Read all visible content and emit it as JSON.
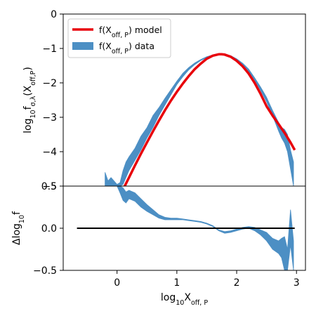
{
  "chart_data": [
    {
      "type": "line",
      "panel": "main",
      "ylabel": {
        "pre": "log",
        "sub1": "10",
        "mid": "f",
        "sub2": "σ,λ",
        "post": "(X",
        "sub3": "off,P",
        "end": ")"
      },
      "ylim": [
        -5,
        0
      ],
      "xlim": [
        -0.9,
        3.15
      ],
      "yticks": [
        "0",
        "−1",
        "−2",
        "−3",
        "−4",
        "−5"
      ],
      "ytick_values": [
        0,
        -1,
        -2,
        -3,
        -4,
        -5
      ],
      "legend_position": "upper-left",
      "series": [
        {
          "name": "f(X_off,P) model",
          "name_parts": {
            "pre": "f(X",
            "sub": "off, P",
            "post": ") model"
          },
          "kind": "line",
          "color": "#e8000b",
          "x": [
            0.1,
            0.2,
            0.3,
            0.4,
            0.5,
            0.6,
            0.7,
            0.8,
            0.9,
            1.0,
            1.1,
            1.2,
            1.3,
            1.4,
            1.5,
            1.6,
            1.7,
            1.75,
            1.8,
            1.9,
            2.0,
            2.1,
            2.2,
            2.3,
            2.4,
            2.5,
            2.6,
            2.7,
            2.8,
            2.9,
            2.97
          ],
          "y": [
            -5.1,
            -4.75,
            -4.4,
            -4.06,
            -3.73,
            -3.41,
            -3.1,
            -2.8,
            -2.52,
            -2.26,
            -2.02,
            -1.8,
            -1.6,
            -1.44,
            -1.3,
            -1.21,
            -1.17,
            -1.17,
            -1.18,
            -1.24,
            -1.36,
            -1.52,
            -1.73,
            -2.0,
            -2.32,
            -2.68,
            -2.95,
            -3.2,
            -3.45,
            -3.73,
            -3.95
          ]
        },
        {
          "name": "f(X_off,P) data",
          "name_parts": {
            "pre": "f(X",
            "sub": "off, P",
            "post": ") data"
          },
          "kind": "band",
          "color": "#4c8fc4",
          "x": [
            -0.2,
            -0.15,
            -0.1,
            0.0,
            0.05,
            0.1,
            0.15,
            0.2,
            0.3,
            0.4,
            0.5,
            0.6,
            0.7,
            0.8,
            0.9,
            1.0,
            1.1,
            1.2,
            1.3,
            1.4,
            1.5,
            1.6,
            1.7,
            1.8,
            1.9,
            2.0,
            2.1,
            2.2,
            2.3,
            2.4,
            2.5,
            2.6,
            2.7,
            2.75,
            2.8,
            2.85,
            2.9,
            2.95
          ],
          "y_low": [
            -5.0,
            -5.0,
            -5.0,
            -5.0,
            -5.0,
            -4.95,
            -4.75,
            -4.55,
            -4.25,
            -3.95,
            -3.6,
            -3.3,
            -2.95,
            -2.65,
            -2.35,
            -2.05,
            -1.82,
            -1.62,
            -1.47,
            -1.35,
            -1.27,
            -1.21,
            -1.18,
            -1.19,
            -1.24,
            -1.34,
            -1.48,
            -1.67,
            -1.92,
            -2.22,
            -2.55,
            -2.95,
            -3.4,
            -3.6,
            -3.75,
            -4.0,
            -4.5,
            -5.0
          ],
          "y_high": [
            -4.6,
            -4.85,
            -4.75,
            -4.95,
            -4.9,
            -4.55,
            -4.3,
            -4.15,
            -3.9,
            -3.55,
            -3.3,
            -2.95,
            -2.72,
            -2.45,
            -2.2,
            -1.95,
            -1.72,
            -1.55,
            -1.42,
            -1.32,
            -1.24,
            -1.19,
            -1.16,
            -1.17,
            -1.21,
            -1.3,
            -1.43,
            -1.6,
            -1.85,
            -2.12,
            -2.42,
            -2.8,
            -3.15,
            -3.3,
            -3.35,
            -3.5,
            -3.95,
            -4.3
          ]
        }
      ]
    },
    {
      "type": "line",
      "panel": "residual",
      "ylabel": {
        "pre": "Δlog",
        "sub1": "10",
        "post": "f"
      },
      "xlabel": {
        "pre": "log",
        "sub1": "10",
        "mid": "X",
        "sub2": "off, P"
      },
      "ylim": [
        -0.5,
        0.5
      ],
      "xlim": [
        -0.9,
        3.15
      ],
      "yticks": [
        "0.5",
        "0.0",
        "−0.5"
      ],
      "ytick_values": [
        0.5,
        0.0,
        -0.5
      ],
      "xticks": [
        "0",
        "1",
        "2",
        "3"
      ],
      "xtick_values": [
        0,
        1,
        2,
        3
      ],
      "series": [
        {
          "name": "",
          "kind": "line",
          "color": "#000000",
          "x": [
            -0.67,
            2.97
          ],
          "y": [
            0.0,
            0.0
          ]
        },
        {
          "name": "",
          "kind": "band",
          "color": "#4c8fc4",
          "x": [
            0.0,
            0.05,
            0.1,
            0.15,
            0.2,
            0.3,
            0.4,
            0.5,
            0.6,
            0.7,
            0.8,
            0.9,
            1.0,
            1.1,
            1.2,
            1.3,
            1.4,
            1.5,
            1.6,
            1.7,
            1.8,
            1.9,
            2.0,
            2.1,
            2.2,
            2.3,
            2.4,
            2.5,
            2.6,
            2.7,
            2.75,
            2.8,
            2.85,
            2.9,
            2.95
          ],
          "y_low": [
            0.5,
            0.42,
            0.33,
            0.3,
            0.35,
            0.32,
            0.25,
            0.2,
            0.16,
            0.12,
            0.1,
            0.1,
            0.1,
            0.1,
            0.09,
            0.08,
            0.07,
            0.05,
            0.02,
            -0.03,
            -0.06,
            -0.05,
            -0.03,
            -0.01,
            0.0,
            -0.03,
            -0.08,
            -0.15,
            -0.25,
            -0.3,
            -0.35,
            -0.5,
            -0.5,
            -0.2,
            -0.5
          ],
          "y_high": [
            0.5,
            0.5,
            0.48,
            0.43,
            0.45,
            0.42,
            0.35,
            0.28,
            0.22,
            0.16,
            0.13,
            0.12,
            0.12,
            0.11,
            0.1,
            0.09,
            0.08,
            0.06,
            0.03,
            -0.02,
            -0.04,
            -0.03,
            -0.01,
            0.01,
            0.02,
            0.01,
            -0.02,
            -0.05,
            -0.12,
            -0.15,
            -0.12,
            -0.1,
            -0.25,
            0.22,
            -0.15
          ]
        }
      ]
    }
  ]
}
